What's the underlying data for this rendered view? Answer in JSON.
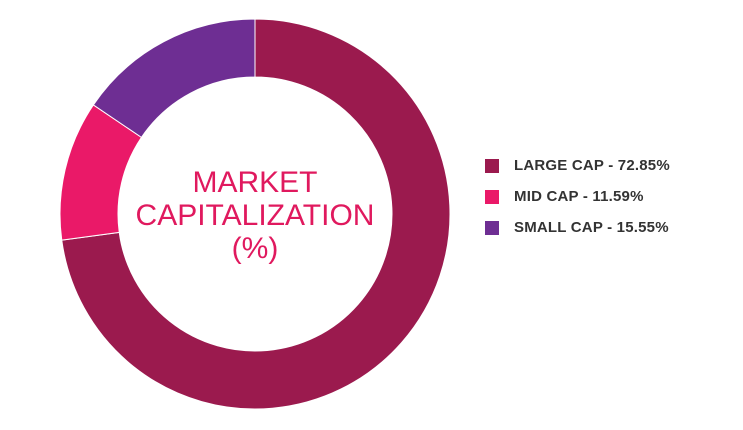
{
  "chart_data": {
    "type": "pie",
    "center_title": [
      "MARKET",
      "CAPITALIZATION",
      "(%)"
    ],
    "center_title_color": "#e0195e",
    "categories": [
      "LARGE CAP",
      "MID CAP",
      "SMALL CAP"
    ],
    "values": [
      72.85,
      11.59,
      15.55
    ],
    "colors": [
      "#9b1a4e",
      "#ea1968",
      "#6e2e93"
    ],
    "legend": {
      "placement": "right",
      "entries": [
        "LARGE CAP - 72.85%",
        "MID CAP - 11.59%",
        "SMALL CAP - 15.55%"
      ]
    }
  }
}
